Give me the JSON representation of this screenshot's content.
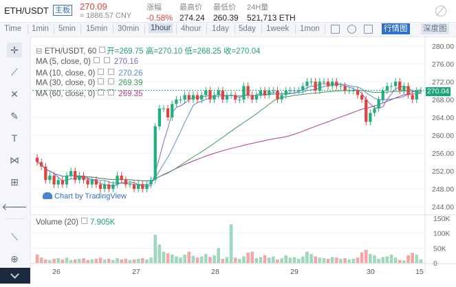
{
  "header": {
    "pair": "ETH/USDT",
    "badge": "主板",
    "last_price": "270.09",
    "cny": "≈ 1886.57 CNY",
    "stats": [
      {
        "label": "涨幅",
        "value": "-0.58%",
        "color": "#e0443e"
      },
      {
        "label": "最高价",
        "value": "274.24"
      },
      {
        "label": "最低价",
        "value": "260.39"
      },
      {
        "label": "24H量",
        "value": "521,713 ETH"
      }
    ]
  },
  "toolbar": {
    "intervals": [
      "Time",
      "1min",
      "5min",
      "15min",
      "30min",
      "1hour",
      "4hour",
      "1day",
      "5day",
      "1week",
      "1mon"
    ],
    "active_interval": "1hour",
    "chart_modes": [
      "行情图",
      "深度图"
    ],
    "active_mode": "行情图"
  },
  "legend": {
    "title": "ETH/USDT, 60",
    "ohlc": "开=269.75 高=270.10 低=268.25 收=270.04",
    "mas": [
      {
        "label": "MA (5, close, 0)",
        "value": "270.16",
        "color": "#7b6ac9"
      },
      {
        "label": "MA (10, close, 0)",
        "value": "270.26",
        "color": "#5b8fc8"
      },
      {
        "label": "MA (30, close, 0)",
        "value": "269.39",
        "color": "#3e9b54"
      },
      {
        "label": "MA (60, close, 0)",
        "value": "269.35",
        "color": "#b23a8a"
      }
    ],
    "watermark": "Chart by TradingView",
    "volume_label": "Volume (20)",
    "volume_value": "7.905K"
  },
  "colors": {
    "up": "#22b07a",
    "down": "#e0443e",
    "up_vol": "#9ed8bd",
    "down_vol": "#f2a7a4"
  },
  "chart_data": {
    "type": "candlestick",
    "price_ticks": [
      280,
      276,
      272,
      268,
      264,
      260,
      256,
      252,
      248,
      244
    ],
    "ylim": [
      242.5,
      281.5
    ],
    "last_value": "270.04",
    "volume_ticks": [
      "150K",
      "100K",
      "50K",
      "0"
    ],
    "volume_ylim": [
      0,
      150
    ],
    "x_ticks": [
      "26",
      "27",
      "28",
      "29",
      "30",
      "15"
    ],
    "close": [
      254,
      253,
      250,
      251,
      249,
      250,
      249,
      251,
      252,
      250,
      251,
      250,
      249,
      250,
      249,
      248,
      249,
      248,
      249,
      251,
      250,
      249,
      249,
      248,
      249,
      248,
      249,
      250,
      262,
      266,
      266,
      264,
      267,
      268,
      268,
      269,
      268,
      269,
      268,
      269,
      270,
      268,
      269,
      270,
      268,
      269,
      269,
      268,
      268,
      271,
      269,
      268,
      269,
      270,
      269,
      270,
      270,
      268,
      269,
      270,
      270,
      270,
      270,
      271,
      272,
      272,
      270,
      272,
      272,
      271,
      272,
      271,
      271,
      270,
      270,
      270,
      269,
      268,
      263,
      265,
      266,
      268,
      270,
      271,
      271,
      272,
      270,
      271,
      269,
      268,
      270,
      270
    ],
    "volume": [
      28,
      18,
      12,
      10,
      14,
      16,
      12,
      18,
      10,
      12,
      14,
      16,
      10,
      12,
      14,
      18,
      12,
      14,
      10,
      16,
      12,
      14,
      10,
      12,
      14,
      16,
      12,
      18,
      95,
      62,
      38,
      32,
      28,
      22,
      18,
      28,
      38,
      24,
      18,
      22,
      30,
      20,
      26,
      50,
      14,
      20,
      130,
      18,
      14,
      22,
      35,
      38,
      16,
      20,
      26,
      18,
      22,
      12,
      16,
      26,
      18,
      20,
      14,
      22,
      38,
      30,
      22,
      18,
      16,
      14,
      20,
      18,
      14,
      16,
      12,
      14,
      18,
      36,
      44,
      30,
      26,
      14,
      20,
      22,
      28,
      18,
      10,
      8,
      26,
      34,
      28,
      12
    ]
  }
}
